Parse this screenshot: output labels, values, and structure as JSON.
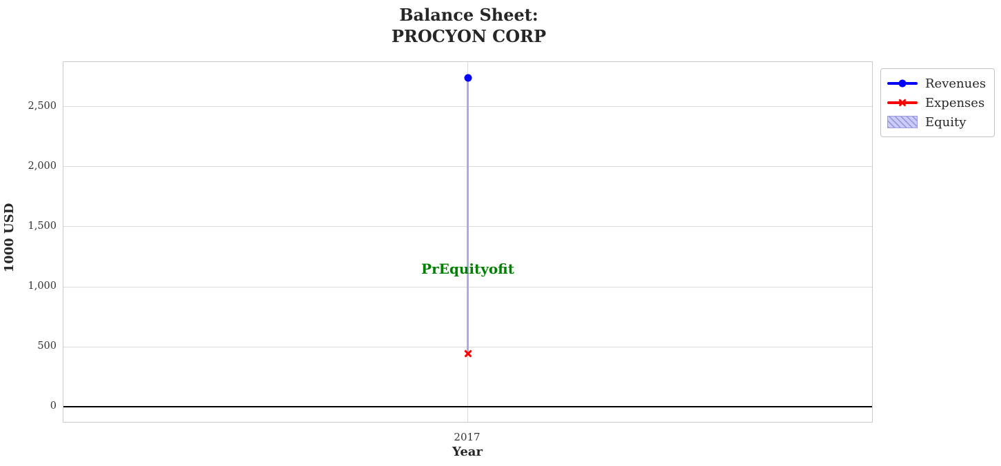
{
  "title": {
    "line1": "Balance Sheet:",
    "line2": "PROCYON CORP"
  },
  "chart_data": {
    "type": "line",
    "title": "Balance Sheet: PROCYON CORP",
    "xlabel": "Year",
    "ylabel": "1000 USD",
    "x": [
      2017
    ],
    "xticks": [
      {
        "value": 2017,
        "label": "2017"
      }
    ],
    "yticks": [
      {
        "value": 0,
        "label": "0"
      },
      {
        "value": 500,
        "label": "500"
      },
      {
        "value": 1000,
        "label": "1,000"
      },
      {
        "value": 1500,
        "label": "1,500"
      },
      {
        "value": 2000,
        "label": "2,000"
      },
      {
        "value": 2500,
        "label": "2,500"
      }
    ],
    "ylim": [
      -126,
      2873
    ],
    "grid": true,
    "zero_line_y": 0,
    "series": [
      {
        "name": "Revenues",
        "type": "line",
        "marker": "circle",
        "color": "#0000ff",
        "values": [
          2740
        ]
      },
      {
        "name": "Expenses",
        "type": "line",
        "marker": "x",
        "color": "#ff0000",
        "values": [
          445
        ]
      },
      {
        "name": "Equity",
        "type": "area",
        "fill_color": "#ccccf5",
        "hatch_color": "#9a9ae0",
        "band_color": "#acace0",
        "from": [
          445
        ],
        "to": [
          2740
        ]
      }
    ],
    "annotation": {
      "text": "PrEquityofit",
      "x": 2017,
      "y": 1150,
      "color": "#008000"
    },
    "legend_position": "outside-top-right"
  }
}
